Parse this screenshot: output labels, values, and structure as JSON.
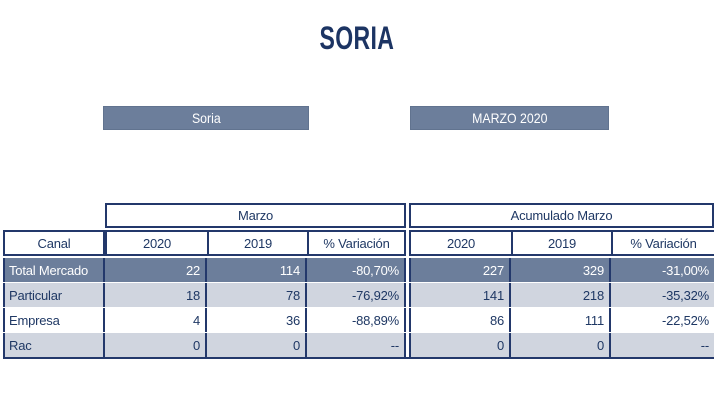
{
  "title": "SORIA",
  "region_bar": {
    "label": "Soria"
  },
  "period_bar": {
    "label": "MARZO 2020"
  },
  "table": {
    "canal_header": "Canal",
    "group_headers": {
      "marzo": "Marzo",
      "acumulado": "Acumulado Marzo"
    },
    "column_headers": {
      "y2020": "2020",
      "y2019": "2019",
      "variacion": "% Variación"
    },
    "rows": [
      {
        "canal": "Total Mercado",
        "marzo_2020": "22",
        "marzo_2019": "114",
        "marzo_variacion": "-80,70%",
        "acum_2020": "227",
        "acum_2019": "329",
        "acum_variacion": "-31,00%"
      },
      {
        "canal": "Particular",
        "marzo_2020": "18",
        "marzo_2019": "78",
        "marzo_variacion": "-76,92%",
        "acum_2020": "141",
        "acum_2019": "218",
        "acum_variacion": "-35,32%"
      },
      {
        "canal": "Empresa",
        "marzo_2020": "4",
        "marzo_2019": "36",
        "marzo_variacion": "-88,89%",
        "acum_2020": "86",
        "acum_2019": "111",
        "acum_variacion": "-22,52%"
      },
      {
        "canal": "Rac",
        "marzo_2020": "0",
        "marzo_2019": "0",
        "marzo_variacion": "--",
        "acum_2020": "0",
        "acum_2019": "0",
        "acum_variacion": "--"
      }
    ]
  },
  "colors": {
    "navy_text": "#1F3864",
    "border_navy": "#23386B",
    "slate_fill": "#6C7E9B",
    "light_row_fill": "#D0D5DF"
  },
  "chart_data": {
    "type": "table",
    "title": "SORIA",
    "row_labels": [
      "Total Mercado",
      "Particular",
      "Empresa",
      "Rac"
    ],
    "column_groups": [
      "Marzo",
      "Acumulado Marzo"
    ],
    "columns": [
      "2020",
      "2019",
      "% Variación",
      "2020",
      "2019",
      "% Variación"
    ],
    "cells": [
      [
        22,
        114,
        "-80,70%",
        227,
        329,
        "-31,00%"
      ],
      [
        18,
        78,
        "-76,92%",
        141,
        218,
        "-35,32%"
      ],
      [
        4,
        36,
        "-88,89%",
        86,
        111,
        "-22,52%"
      ],
      [
        0,
        0,
        "--",
        0,
        0,
        "--"
      ]
    ]
  }
}
